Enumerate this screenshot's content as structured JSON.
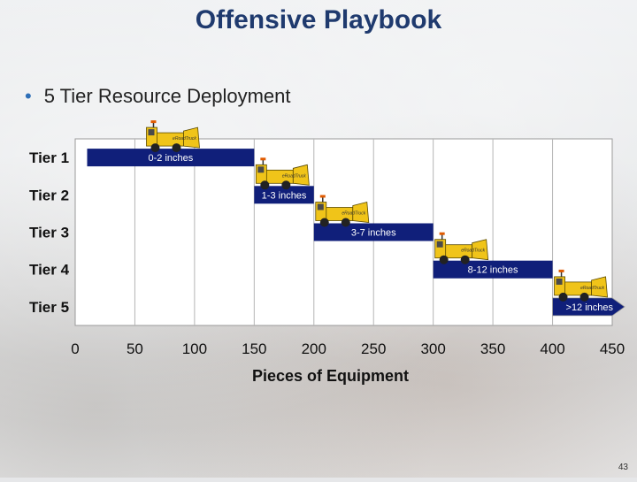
{
  "slide": {
    "title": "Offensive Playbook",
    "bullet": "5 Tier Resource Deployment",
    "page_number": "43"
  },
  "chart_data": {
    "type": "bar",
    "orientation": "horizontal-range",
    "categories": [
      "Tier 1",
      "Tier 2",
      "Tier 3",
      "Tier 4",
      "Tier 5"
    ],
    "series": [
      {
        "name": "Pieces of Equipment",
        "ranges": [
          [
            10,
            150
          ],
          [
            150,
            200
          ],
          [
            200,
            300
          ],
          [
            300,
            400
          ],
          [
            400,
            450
          ]
        ],
        "labels": [
          "0-2 inches",
          "1-3 inches",
          "3-7 inches",
          "8-12 inches",
          ">12 inches"
        ]
      }
    ],
    "xlabel": "Pieces of Equipment",
    "xlim": [
      0,
      450
    ],
    "xticks": [
      0,
      50,
      100,
      150,
      200,
      250,
      300,
      350,
      400,
      450
    ],
    "grid": "vertical",
    "bar_color": "#101f7a",
    "plot_background": "#ffffff",
    "truck_color": "#f0c419",
    "truck_label": "eRoadTruck"
  }
}
